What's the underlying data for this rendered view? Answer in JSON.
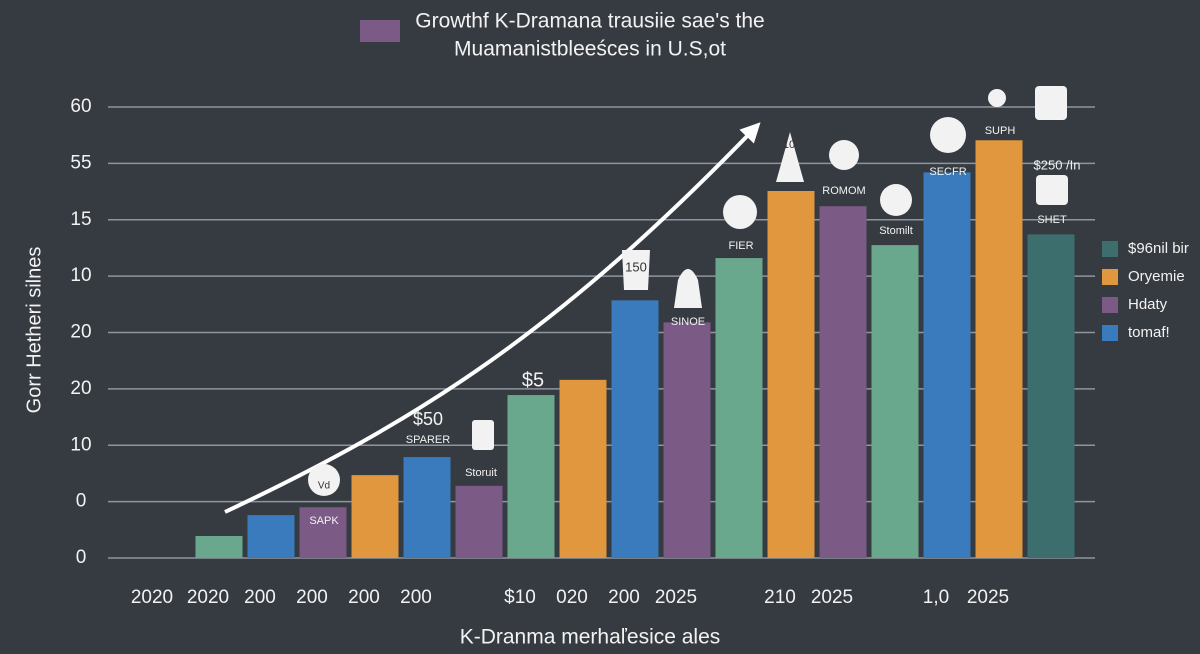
{
  "chart_data": {
    "type": "bar",
    "title": [
      "Growthf K-Dramana trausiie sae's the",
      "Muamanistbleeśces in U.S,ot"
    ],
    "title_color": "#7b5a86",
    "y_label": "Gorr Hetheri silnes",
    "x_label": "K-Dranma merhaľesice ales",
    "categories": [
      "2020",
      "2020",
      "200",
      "200",
      "200",
      "200",
      null,
      "$10",
      "020",
      "200",
      "2025",
      null,
      "210",
      "2025",
      null,
      "1,0",
      "2025",
      null
    ],
    "values": [
      null,
      0.39,
      0.76,
      0.9,
      1.47,
      1.79,
      1.28,
      2.89,
      3.16,
      4.57,
      4.18,
      5.32,
      6.51,
      6.24,
      5.55,
      6.84,
      7.41,
      5.74
    ],
    "colors": [
      null,
      "#6aa88e",
      "#3a7bbd",
      "#7b5a86",
      "#e0973e",
      "#3a7bbd",
      "#7b5a86",
      "#6aa88e",
      "#e0973e",
      "#3a7bbd",
      "#7b5a86",
      "#6aa88e",
      "#e0973e",
      "#7b5a86",
      "#6aa88e",
      "#3a7bbd",
      "#e0973e",
      "#3d6e6e"
    ],
    "ylim": [
      0,
      8
    ],
    "yticks": [
      0,
      {
        "value": 1,
        "label": "0"
      },
      {
        "value": 2,
        "label": "10"
      },
      {
        "value": 3,
        "label": "20"
      },
      {
        "value": 4,
        "label": "20"
      },
      {
        "value": 5,
        "label": "10"
      },
      {
        "value": 6,
        "label": "15"
      },
      {
        "value": 7,
        "label": "55"
      },
      {
        "value": 8,
        "label": "60"
      }
    ],
    "grid": true,
    "legend": [
      {
        "name": "$96nil bir",
        "color": "#3d6e6e"
      },
      {
        "name": "Oryemie",
        "color": "#e0973e"
      },
      {
        "name": "Hdaty",
        "color": "#7b5a86"
      },
      {
        "name": "tomaf!",
        "color": "#3a7bbd"
      }
    ],
    "annotations": [
      "Vd",
      "SAPK",
      "$50",
      "SPARER",
      "Storuit",
      "$5",
      "150",
      "SINOE",
      "FIER",
      "10",
      "ROMOM",
      "Stomilt",
      "SECFR",
      "SUPH",
      "$250 /In",
      "SHET"
    ]
  }
}
